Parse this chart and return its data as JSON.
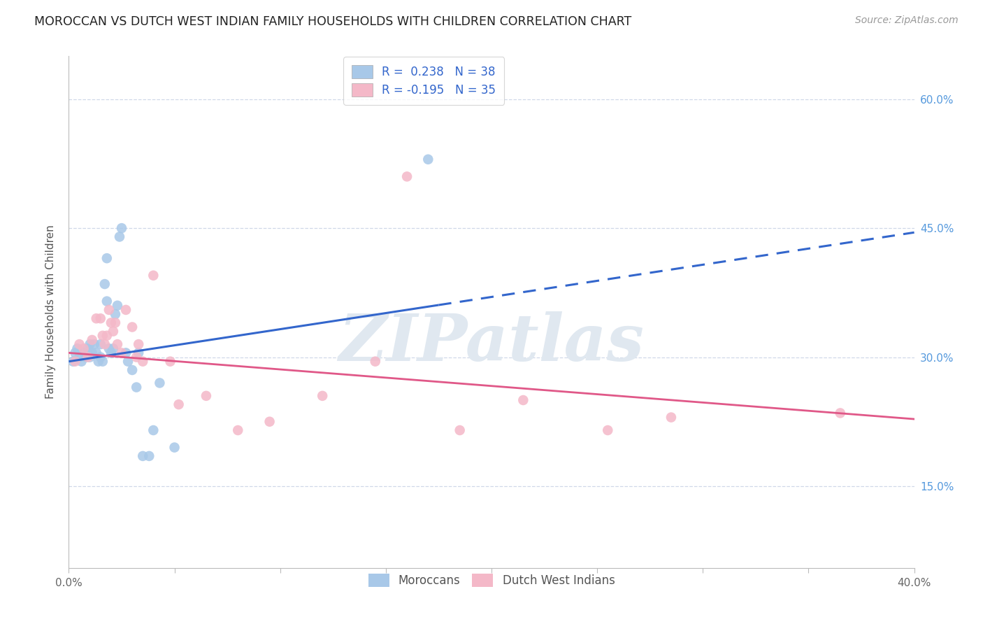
{
  "title": "MOROCCAN VS DUTCH WEST INDIAN FAMILY HOUSEHOLDS WITH CHILDREN CORRELATION CHART",
  "source": "Source: ZipAtlas.com",
  "ylabel": "Family Households with Children",
  "moroccan_color": "#a8c8e8",
  "dutch_color": "#f4b8c8",
  "moroccan_line_color": "#3366cc",
  "dutch_line_color": "#e05888",
  "background_color": "#ffffff",
  "watermark_text": "ZIPatlas",
  "xlim": [
    0.0,
    0.4
  ],
  "ylim": [
    0.055,
    0.65
  ],
  "y_ticks": [
    0.15,
    0.3,
    0.45,
    0.6
  ],
  "x_ticks": [
    0.0,
    0.05,
    0.1,
    0.15,
    0.2,
    0.25,
    0.3,
    0.35,
    0.4
  ],
  "moroccan_x": [
    0.002,
    0.003,
    0.004,
    0.005,
    0.006,
    0.007,
    0.008,
    0.009,
    0.01,
    0.01,
    0.011,
    0.012,
    0.013,
    0.014,
    0.015,
    0.015,
    0.016,
    0.017,
    0.018,
    0.018,
    0.019,
    0.02,
    0.021,
    0.022,
    0.023,
    0.024,
    0.025,
    0.027,
    0.028,
    0.03,
    0.032,
    0.033,
    0.035,
    0.038,
    0.04,
    0.043,
    0.05,
    0.17
  ],
  "moroccan_y": [
    0.295,
    0.305,
    0.31,
    0.3,
    0.295,
    0.305,
    0.3,
    0.31,
    0.315,
    0.3,
    0.305,
    0.315,
    0.305,
    0.295,
    0.315,
    0.3,
    0.295,
    0.385,
    0.415,
    0.365,
    0.31,
    0.305,
    0.31,
    0.35,
    0.36,
    0.44,
    0.45,
    0.305,
    0.295,
    0.285,
    0.265,
    0.305,
    0.185,
    0.185,
    0.215,
    0.27,
    0.195,
    0.53
  ],
  "dutch_x": [
    0.003,
    0.005,
    0.007,
    0.009,
    0.011,
    0.013,
    0.015,
    0.016,
    0.017,
    0.018,
    0.019,
    0.02,
    0.021,
    0.022,
    0.023,
    0.025,
    0.027,
    0.03,
    0.032,
    0.033,
    0.035,
    0.04,
    0.048,
    0.052,
    0.065,
    0.08,
    0.095,
    0.12,
    0.145,
    0.16,
    0.185,
    0.215,
    0.255,
    0.285,
    0.365
  ],
  "dutch_y": [
    0.295,
    0.315,
    0.31,
    0.3,
    0.32,
    0.345,
    0.345,
    0.325,
    0.315,
    0.325,
    0.355,
    0.34,
    0.33,
    0.34,
    0.315,
    0.305,
    0.355,
    0.335,
    0.3,
    0.315,
    0.295,
    0.395,
    0.295,
    0.245,
    0.255,
    0.215,
    0.225,
    0.255,
    0.295,
    0.51,
    0.215,
    0.25,
    0.215,
    0.23,
    0.235
  ],
  "moroc_line_x0": 0.0,
  "moroc_line_x1": 0.4,
  "moroc_line_y0": 0.295,
  "moroc_line_y1": 0.445,
  "moroc_line_solid_end": 0.175,
  "dutch_line_x0": 0.0,
  "dutch_line_x1": 0.4,
  "dutch_line_y0": 0.305,
  "dutch_line_y1": 0.228
}
